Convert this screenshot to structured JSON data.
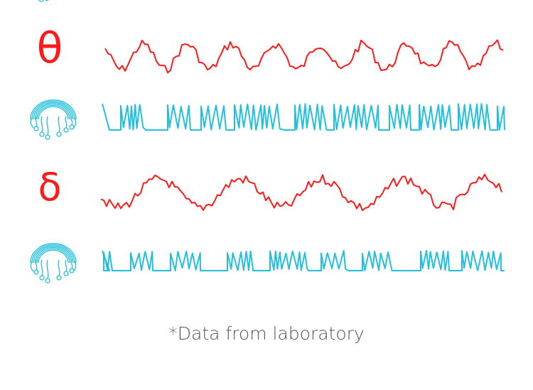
{
  "colors": {
    "wave": "#ff1a1a",
    "spike": "#22c0dc",
    "caption": "#555555"
  },
  "rows": [
    {
      "kind": "band-symbol",
      "symbol": "θ",
      "icon": "theta-symbol"
    },
    {
      "kind": "spike-train",
      "icon": "jellyfish-icon"
    },
    {
      "kind": "band-symbol",
      "symbol": "δ",
      "icon": "delta-symbol"
    },
    {
      "kind": "spike-train",
      "icon": "jellyfish-icon"
    }
  ],
  "footnote": "*Data from laboratory"
}
